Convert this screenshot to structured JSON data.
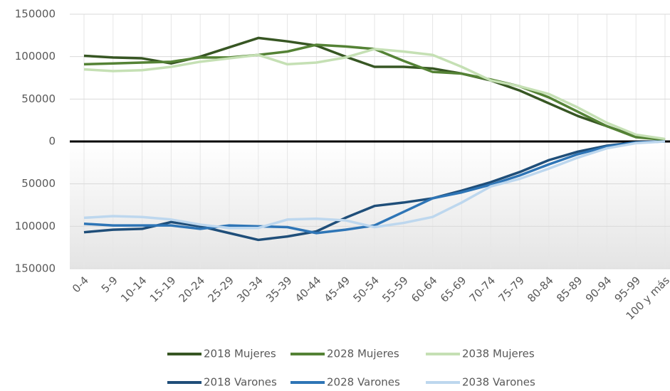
{
  "chart_data": {
    "type": "line",
    "categories": [
      "0-4",
      "5-9",
      "10-14",
      "15-19",
      "20-24",
      "25-29",
      "30-34",
      "35-39",
      "40-44",
      "45-49",
      "50-54",
      "55-59",
      "60-64",
      "65-69",
      "70-74",
      "75-79",
      "80-84",
      "85-89",
      "90-94",
      "95-99",
      "100 y más"
    ],
    "series": [
      {
        "name": "2018 Mujeres",
        "color": "#375623",
        "values": [
          101000,
          99000,
          98000,
          92000,
          100000,
          111000,
          122000,
          118000,
          113000,
          100000,
          88000,
          88000,
          86000,
          80000,
          72000,
          60000,
          45000,
          30000,
          18000,
          6000,
          2000
        ]
      },
      {
        "name": "2028 Mujeres",
        "color": "#548235",
        "values": [
          91000,
          92000,
          93000,
          94000,
          99000,
          99000,
          102000,
          106000,
          114000,
          112000,
          109000,
          95000,
          82000,
          80000,
          73000,
          65000,
          52000,
          35000,
          18000,
          5000,
          2000
        ]
      },
      {
        "name": "2038 Mujeres",
        "color": "#c5e0b4",
        "values": [
          85000,
          83000,
          84000,
          88000,
          94000,
          98000,
          102000,
          91000,
          93000,
          99000,
          109000,
          106000,
          102000,
          88000,
          72000,
          65000,
          56000,
          40000,
          22000,
          8000,
          3000
        ]
      },
      {
        "name": "2018 Varones",
        "color": "#1f4e79",
        "values": [
          -107000,
          -104000,
          -103000,
          -95000,
          -100000,
          -108000,
          -116000,
          -112000,
          -106000,
          -90000,
          -76000,
          -72000,
          -67000,
          -58000,
          -48000,
          -36000,
          -22000,
          -12000,
          -5000,
          -1000,
          0
        ]
      },
      {
        "name": "2028 Varones",
        "color": "#2e75b6",
        "values": [
          -97000,
          -99000,
          -99000,
          -99000,
          -103000,
          -99000,
          -100000,
          -101000,
          -108000,
          -104000,
          -99000,
          -83000,
          -67000,
          -60000,
          -51000,
          -40000,
          -27000,
          -15000,
          -6000,
          -1000,
          0
        ]
      },
      {
        "name": "2038 Varones",
        "color": "#bdd7ee",
        "values": [
          -90000,
          -88000,
          -89000,
          -92000,
          -98000,
          -102000,
          -102000,
          -92000,
          -91000,
          -93000,
          -101000,
          -96000,
          -89000,
          -72000,
          -53000,
          -44000,
          -32000,
          -19000,
          -8000,
          -2000,
          0
        ]
      }
    ],
    "ylim": [
      -150000,
      150000
    ],
    "yticks": [
      {
        "value": -150000,
        "label": "150000"
      },
      {
        "value": -100000,
        "label": "100000"
      },
      {
        "value": -50000,
        "label": "50000"
      },
      0,
      50000,
      100000,
      150000
    ],
    "grid": true,
    "legend": "bottom"
  }
}
